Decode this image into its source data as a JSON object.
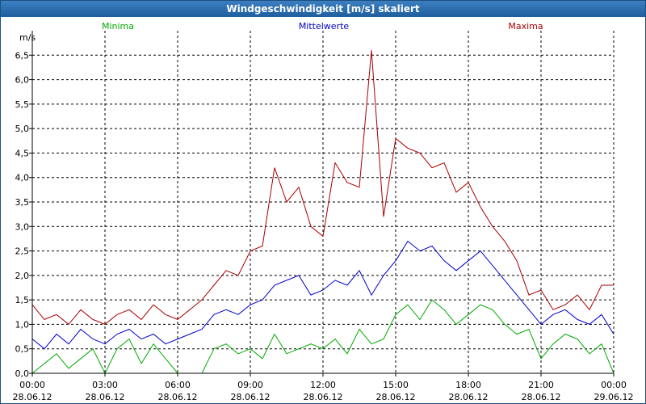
{
  "window": {
    "title": "Windgeschwindigkeit [m/s] skaliert"
  },
  "chart_data": {
    "type": "line",
    "title": "Windgeschwindigkeit [m/s] skaliert",
    "ylabel": "m/s",
    "ylim": [
      0,
      7
    ],
    "xlim": [
      0,
      24
    ],
    "grid": true,
    "legend_position": "top",
    "y_ticks": [
      {
        "v": 0.0,
        "label": "0,0"
      },
      {
        "v": 0.5,
        "label": "0,5"
      },
      {
        "v": 1.0,
        "label": "1,0"
      },
      {
        "v": 1.5,
        "label": "1,5"
      },
      {
        "v": 2.0,
        "label": "2,0"
      },
      {
        "v": 2.5,
        "label": "2,5"
      },
      {
        "v": 3.0,
        "label": "3,0"
      },
      {
        "v": 3.5,
        "label": "3,5"
      },
      {
        "v": 4.0,
        "label": "4,0"
      },
      {
        "v": 4.5,
        "label": "4,5"
      },
      {
        "v": 5.0,
        "label": "5,0"
      },
      {
        "v": 5.5,
        "label": "5,5"
      },
      {
        "v": 6.0,
        "label": "6,0"
      },
      {
        "v": 6.5,
        "label": "6,5"
      }
    ],
    "x_ticks": [
      {
        "v": 0,
        "time": "00:00",
        "date": "28.06.12"
      },
      {
        "v": 3,
        "time": "03:00",
        "date": "28.06.12"
      },
      {
        "v": 6,
        "time": "06:00",
        "date": "28.06.12"
      },
      {
        "v": 9,
        "time": "09:00",
        "date": "28.06.12"
      },
      {
        "v": 12,
        "time": "12:00",
        "date": "28.06.12"
      },
      {
        "v": 15,
        "time": "15:00",
        "date": "28.06.12"
      },
      {
        "v": 18,
        "time": "18:00",
        "date": "28.06.12"
      },
      {
        "v": 21,
        "time": "21:00",
        "date": "28.06.12"
      },
      {
        "v": 24,
        "time": "00:00",
        "date": "29.06.12"
      }
    ],
    "series": [
      {
        "name": "Minima",
        "color": "#00aa00",
        "x": [
          0,
          0.5,
          1,
          1.5,
          2,
          2.5,
          3,
          3.5,
          4,
          4.5,
          5,
          5.5,
          6,
          6.5,
          7,
          7.5,
          8,
          8.5,
          9,
          9.5,
          10,
          10.5,
          11,
          11.5,
          12,
          12.5,
          13,
          13.5,
          14,
          14.5,
          15,
          15.5,
          16,
          16.5,
          17,
          17.5,
          18,
          18.5,
          19,
          19.5,
          20,
          20.5,
          21,
          21.5,
          22,
          22.5,
          23,
          23.5,
          24
        ],
        "values": [
          0.0,
          0.2,
          0.4,
          0.1,
          0.3,
          0.5,
          0.0,
          0.5,
          0.7,
          0.2,
          0.6,
          0.3,
          0.0,
          0.0,
          0.0,
          0.5,
          0.6,
          0.4,
          0.5,
          0.3,
          0.8,
          0.4,
          0.5,
          0.6,
          0.5,
          0.7,
          0.4,
          0.9,
          0.6,
          0.7,
          1.2,
          1.4,
          1.1,
          1.5,
          1.3,
          1.0,
          1.2,
          1.4,
          1.3,
          1.0,
          0.8,
          0.9,
          0.3,
          0.6,
          0.8,
          0.7,
          0.4,
          0.6,
          0.0
        ]
      },
      {
        "name": "Mittelwerte",
        "color": "#0000cc",
        "x": [
          0,
          0.5,
          1,
          1.5,
          2,
          2.5,
          3,
          3.5,
          4,
          4.5,
          5,
          5.5,
          6,
          6.5,
          7,
          7.5,
          8,
          8.5,
          9,
          9.5,
          10,
          10.5,
          11,
          11.5,
          12,
          12.5,
          13,
          13.5,
          14,
          14.5,
          15,
          15.5,
          16,
          16.5,
          17,
          17.5,
          18,
          18.5,
          19,
          19.5,
          20,
          20.5,
          21,
          21.5,
          22,
          22.5,
          23,
          23.5,
          24
        ],
        "values": [
          0.7,
          0.5,
          0.8,
          0.6,
          0.9,
          0.7,
          0.6,
          0.8,
          0.9,
          0.7,
          0.8,
          0.6,
          0.7,
          0.8,
          0.9,
          1.2,
          1.3,
          1.2,
          1.4,
          1.5,
          1.8,
          1.9,
          2.0,
          1.6,
          1.7,
          1.9,
          1.8,
          2.1,
          1.6,
          2.0,
          2.3,
          2.7,
          2.5,
          2.6,
          2.3,
          2.1,
          2.3,
          2.5,
          2.2,
          1.9,
          1.6,
          1.3,
          1.0,
          1.2,
          1.3,
          1.1,
          1.0,
          1.2,
          0.8
        ]
      },
      {
        "name": "Maxima",
        "color": "#aa0000",
        "x": [
          0,
          0.5,
          1,
          1.5,
          2,
          2.5,
          3,
          3.5,
          4,
          4.5,
          5,
          5.5,
          6,
          6.5,
          7,
          7.5,
          8,
          8.5,
          9,
          9.5,
          10,
          10.5,
          11,
          11.5,
          12,
          12.5,
          13,
          13.5,
          14,
          14.5,
          15,
          15.5,
          16,
          16.5,
          17,
          17.5,
          18,
          18.5,
          19,
          19.5,
          20,
          20.5,
          21,
          21.5,
          22,
          22.5,
          23,
          23.5,
          24
        ],
        "values": [
          1.4,
          1.1,
          1.2,
          1.0,
          1.3,
          1.1,
          1.0,
          1.2,
          1.3,
          1.1,
          1.4,
          1.2,
          1.1,
          1.3,
          1.5,
          1.8,
          2.1,
          2.0,
          2.5,
          2.6,
          4.2,
          3.5,
          3.8,
          3.0,
          2.8,
          4.3,
          3.9,
          3.8,
          6.6,
          3.2,
          4.8,
          4.6,
          4.5,
          4.2,
          4.3,
          3.7,
          3.9,
          3.4,
          3.0,
          2.7,
          2.3,
          1.6,
          1.7,
          1.3,
          1.4,
          1.6,
          1.3,
          1.8,
          1.8
        ]
      }
    ]
  }
}
